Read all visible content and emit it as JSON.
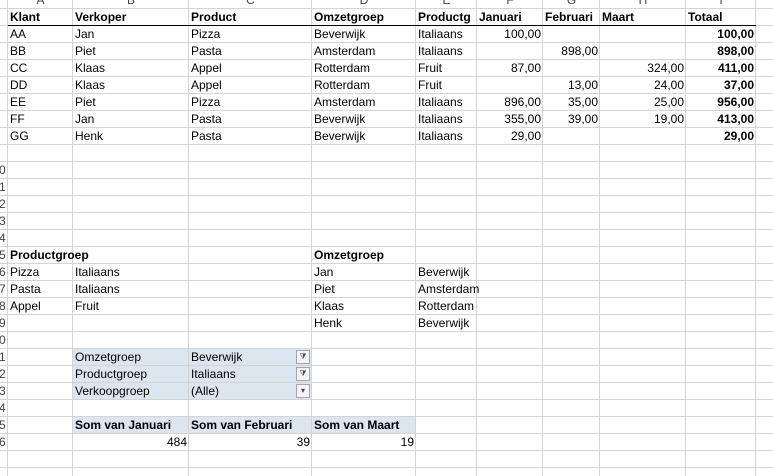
{
  "column_headers": [
    "A",
    "B",
    "C",
    "D",
    "E",
    "F",
    "G",
    "H",
    "I"
  ],
  "row_numbers": [
    "0",
    "1",
    "2",
    "3",
    "4",
    "5",
    "6",
    "7",
    "8",
    "9",
    "0",
    "1",
    "2",
    "3",
    "4",
    "5",
    "6"
  ],
  "main_table": {
    "header": [
      "Klant",
      "Verkoper",
      "Product",
      "Omzetgroep",
      "Productg",
      "Januari",
      "Februari",
      "Maart",
      "Totaal"
    ],
    "rows": [
      [
        "AA",
        "Jan",
        "Pizza",
        "Beverwijk",
        "Italiaans",
        "100,00",
        null,
        null,
        "100,00"
      ],
      [
        "BB",
        "Piet",
        "Pasta",
        "Amsterdam",
        "Italiaans",
        null,
        "898,00",
        null,
        "898,00"
      ],
      [
        "CC",
        "Klaas",
        "Appel",
        "Rotterdam",
        "Fruit",
        "87,00",
        null,
        "324,00",
        "411,00"
      ],
      [
        "DD",
        "Klaas",
        "Appel",
        "Rotterdam",
        "Fruit",
        null,
        "13,00",
        "24,00",
        "37,00"
      ],
      [
        "EE",
        "Piet",
        "Pizza",
        "Amsterdam",
        "Italiaans",
        "896,00",
        "35,00",
        "25,00",
        "956,00"
      ],
      [
        "FF",
        "Jan",
        "Pasta",
        "Beverwijk",
        "Italiaans",
        "355,00",
        "39,00",
        "19,00",
        "413,00"
      ],
      [
        "GG",
        "Henk",
        "Pasta",
        "Beverwijk",
        "Italiaans",
        "29,00",
        null,
        null,
        "29,00"
      ]
    ]
  },
  "productgroep_table": {
    "title": "Productgroep",
    "rows": [
      [
        "Pizza",
        "Italiaans"
      ],
      [
        "Pasta",
        "Italiaans"
      ],
      [
        "Appel",
        "Fruit"
      ]
    ]
  },
  "omzetgroep_table": {
    "title": "Omzetgroep",
    "rows": [
      [
        "Jan",
        "Beverwijk"
      ],
      [
        "Piet",
        "Amsterdam"
      ],
      [
        "Klaas",
        "Rotterdam"
      ],
      [
        "Henk",
        "Beverwijk"
      ]
    ]
  },
  "pivot_filters": [
    [
      "Omzetgroep",
      "Beverwijk"
    ],
    [
      "Productgroep",
      "Italiaans"
    ],
    [
      "Verkoopgroep",
      "(Alle)"
    ]
  ],
  "pivot": {
    "headers": [
      "Som van Januari",
      "Som van Februari",
      "Som van Maart"
    ],
    "values": [
      484,
      39,
      19
    ]
  }
}
